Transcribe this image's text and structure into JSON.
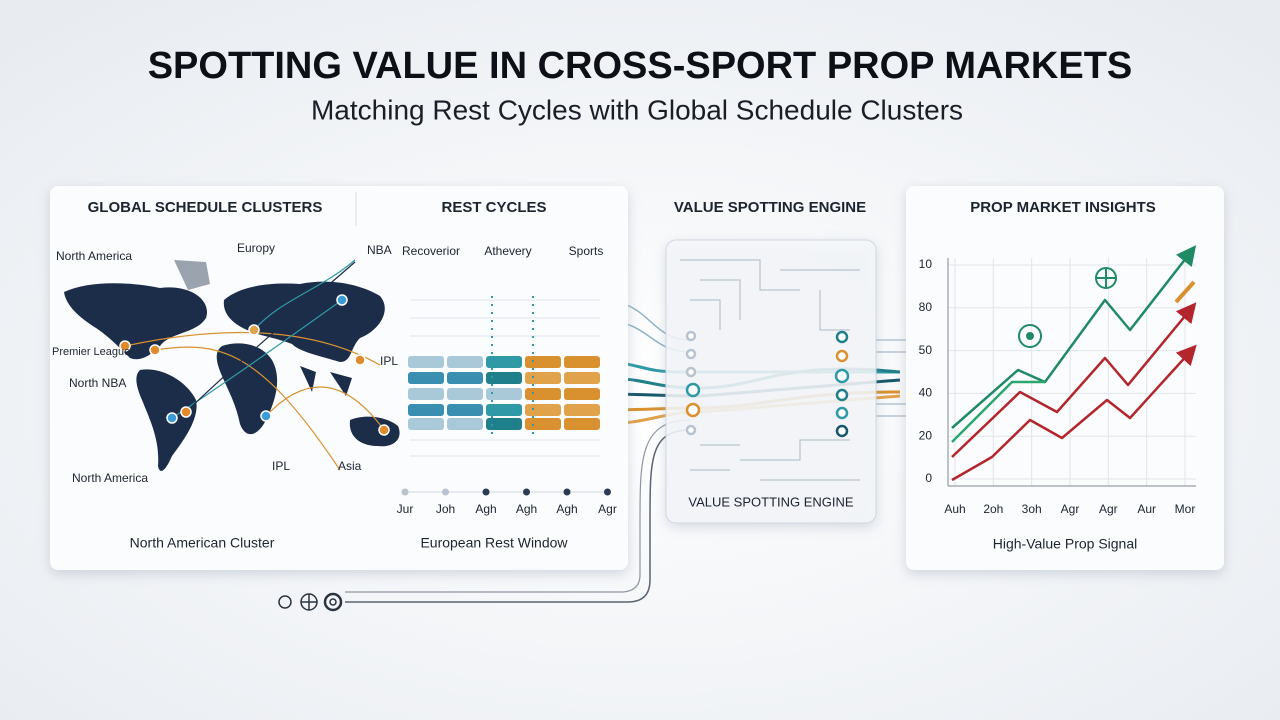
{
  "title": "SPOTTING VALUE IN CROSS-SPORT PROP MARKETS",
  "subtitle": "Matching Rest Cycles with Global Schedule Clusters",
  "clusters_panel": {
    "heading": "GLOBAL SCHEDULE CLUSTERS",
    "map_labels": [
      "North America",
      "Europy",
      "NBA",
      "Premier League",
      "North NBA",
      "IPL",
      "North America",
      "IPL",
      "Asia"
    ],
    "footer": "North American Cluster"
  },
  "rest_panel": {
    "heading": "REST CYCLES",
    "columns": [
      "Recoverior",
      "Athevery",
      "Sports"
    ],
    "months": [
      "Jur",
      "Joh",
      "Agh",
      "Agh",
      "Agh",
      "Agr"
    ],
    "footer": "European Rest Window"
  },
  "engine": {
    "heading": "VALUE SPOTTING ENGINE",
    "label": "VALUE SPOTTING ENGINE"
  },
  "insights": {
    "heading": "PROP MARKET INSIGHTS",
    "y_labels": [
      "10",
      "80",
      "50",
      "40",
      "20",
      "0"
    ],
    "x_labels": [
      "Auh",
      "2oh",
      "3oh",
      "Agr",
      "Agr",
      "Aur",
      "Mor"
    ],
    "footer": "High-Value Prop Signal"
  }
}
